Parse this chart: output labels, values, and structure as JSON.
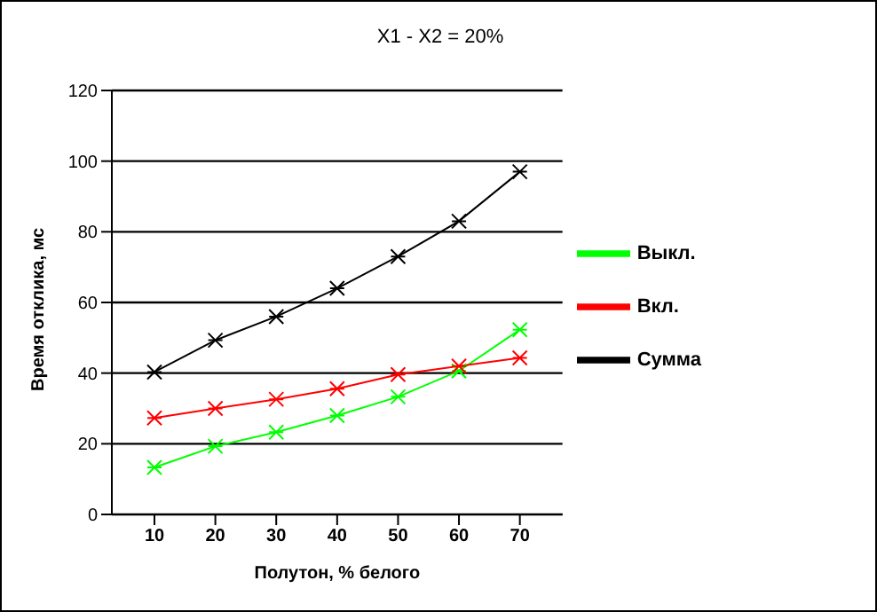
{
  "chart_data": {
    "type": "line",
    "title": "X1 - X2 = 20%",
    "xlabel": "Полутон, % белого",
    "ylabel": "Время отклика, мс",
    "categories": [
      "10",
      "20",
      "30",
      "40",
      "50",
      "60",
      "70"
    ],
    "series": [
      {
        "name": "Выкл.",
        "color": "#00ff00",
        "values": [
          13.3,
          19.3,
          23.3,
          28,
          33.3,
          40.6,
          52.3
        ]
      },
      {
        "name": "Вкл.",
        "color": "#ff0000",
        "values": [
          27.3,
          30,
          32.6,
          35.6,
          39.6,
          42,
          44.3
        ]
      },
      {
        "name": "Сумма",
        "color": "#000000",
        "values": [
          40.3,
          49.3,
          56,
          64,
          73,
          83,
          97
        ]
      }
    ],
    "ylim": [
      0,
      120
    ],
    "yticks": [
      0,
      20,
      40,
      60,
      80,
      100,
      120
    ],
    "grid": "y",
    "legend": "right",
    "marker": "cross",
    "line_style": "solid"
  }
}
